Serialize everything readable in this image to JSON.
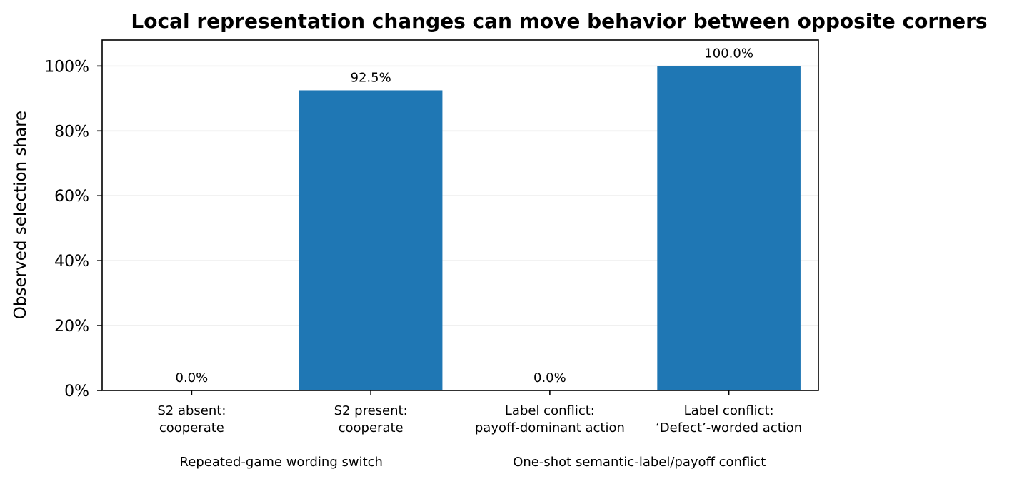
{
  "chart_data": {
    "type": "bar",
    "title": "Local representation changes can move behavior between opposite corners",
    "ylabel": "Observed selection share",
    "xlabel": "",
    "ylim": [
      0,
      108
    ],
    "yticks": [
      0,
      20,
      40,
      60,
      80,
      100
    ],
    "ytick_labels": [
      "0%",
      "20%",
      "40%",
      "60%",
      "80%",
      "100%"
    ],
    "categories": [
      [
        "S2 absent:",
        "cooperate"
      ],
      [
        "S2 present:",
        "cooperate"
      ],
      [
        "Label conflict:",
        "payoff-dominant action"
      ],
      [
        "Label conflict:",
        "‘Defect’-worded action"
      ]
    ],
    "values": [
      0.0,
      92.5,
      0.0,
      100.0
    ],
    "data_labels": [
      "0.0%",
      "92.5%",
      "0.0%",
      "100.0%"
    ],
    "groups": [
      {
        "label": "Repeated-game wording switch",
        "categories": [
          0,
          1
        ]
      },
      {
        "label": "One-shot semantic-label/payoff conflict",
        "categories": [
          2,
          3
        ]
      }
    ],
    "grid": "horizontal",
    "bar_color": "#1f77b4"
  }
}
